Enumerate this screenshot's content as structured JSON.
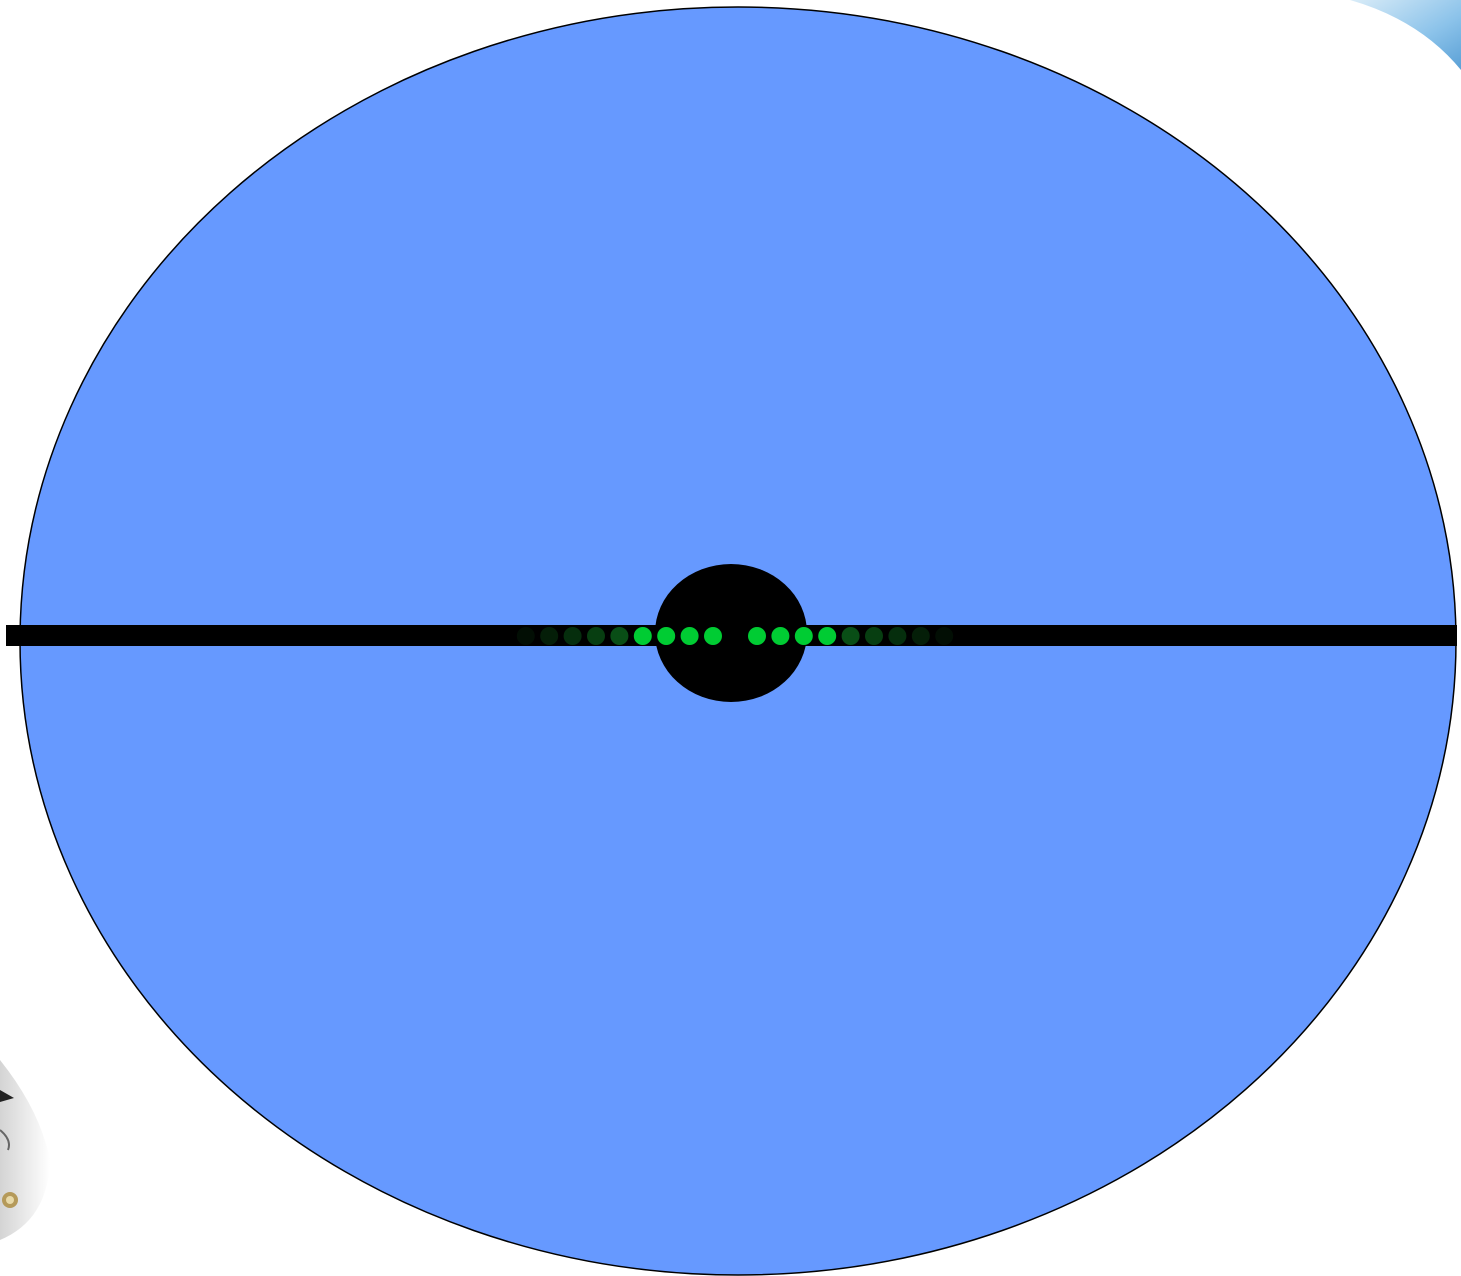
{
  "diagram": {
    "colors": {
      "background": "#ffffff",
      "ellipse_fill": "#6699ff",
      "ellipse_stroke": "#000000",
      "bar": "#000000",
      "core": "#000000",
      "dot_bright": "#00cc33",
      "dot_dim": "#0b5e1a"
    },
    "left_dot_trail": {
      "count": 9,
      "brightness_order": "fading-outward"
    },
    "right_dot_trail": {
      "count": 9,
      "brightness_order": "fading-outward"
    },
    "corner_decorations": [
      {
        "name": "top-right-corner-decoration",
        "color": "#7fb8e6"
      },
      {
        "name": "bottom-left-corner-decoration",
        "color": "#9a9a9a"
      }
    ]
  }
}
